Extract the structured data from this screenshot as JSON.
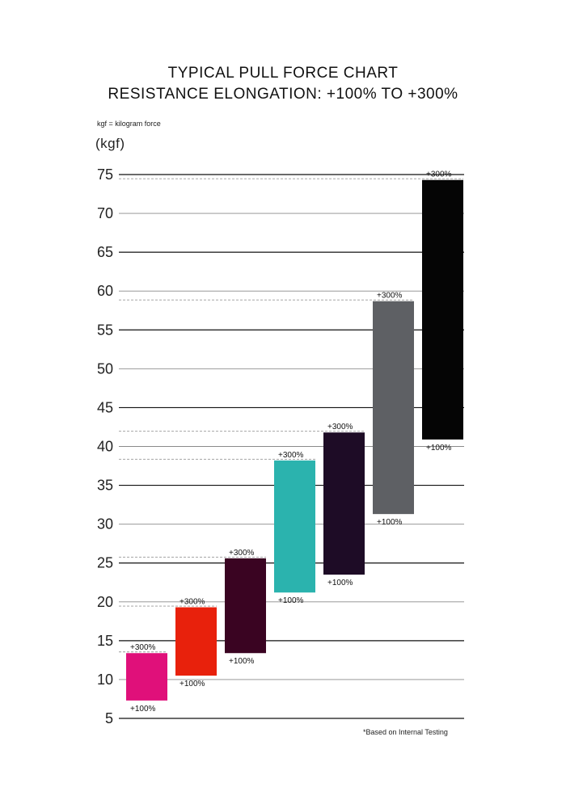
{
  "chart_data": {
    "type": "bar",
    "title": "TYPICAL PULL FORCE CHART",
    "subtitle": "RESISTANCE ELONGATION: +100% TO +300%",
    "note": "kgf = kilogram force",
    "ylabel": "(kgf)",
    "footnote": "*Based on Internal Testing",
    "ylim": [
      5,
      75
    ],
    "yticks": [
      75,
      70,
      65,
      60,
      55,
      50,
      45,
      40,
      35,
      30,
      25,
      20,
      15,
      10,
      5
    ],
    "grid": true,
    "low_label": "+100%",
    "high_label": "+300%",
    "series": [
      {
        "color": "#e0107a",
        "low": 7.3,
        "high": 13.4
      },
      {
        "color": "#e8210c",
        "low": 10.5,
        "high": 19.3
      },
      {
        "color": "#3a0422",
        "low": 13.4,
        "high": 25.6
      },
      {
        "color": "#2bb3ae",
        "low": 21.2,
        "high": 38.2
      },
      {
        "color": "#1e0c26",
        "low": 23.5,
        "high": 41.8
      },
      {
        "color": "#5e6064",
        "low": 31.3,
        "high": 58.7
      },
      {
        "color": "#050505",
        "low": 40.9,
        "high": 74.3
      }
    ]
  }
}
